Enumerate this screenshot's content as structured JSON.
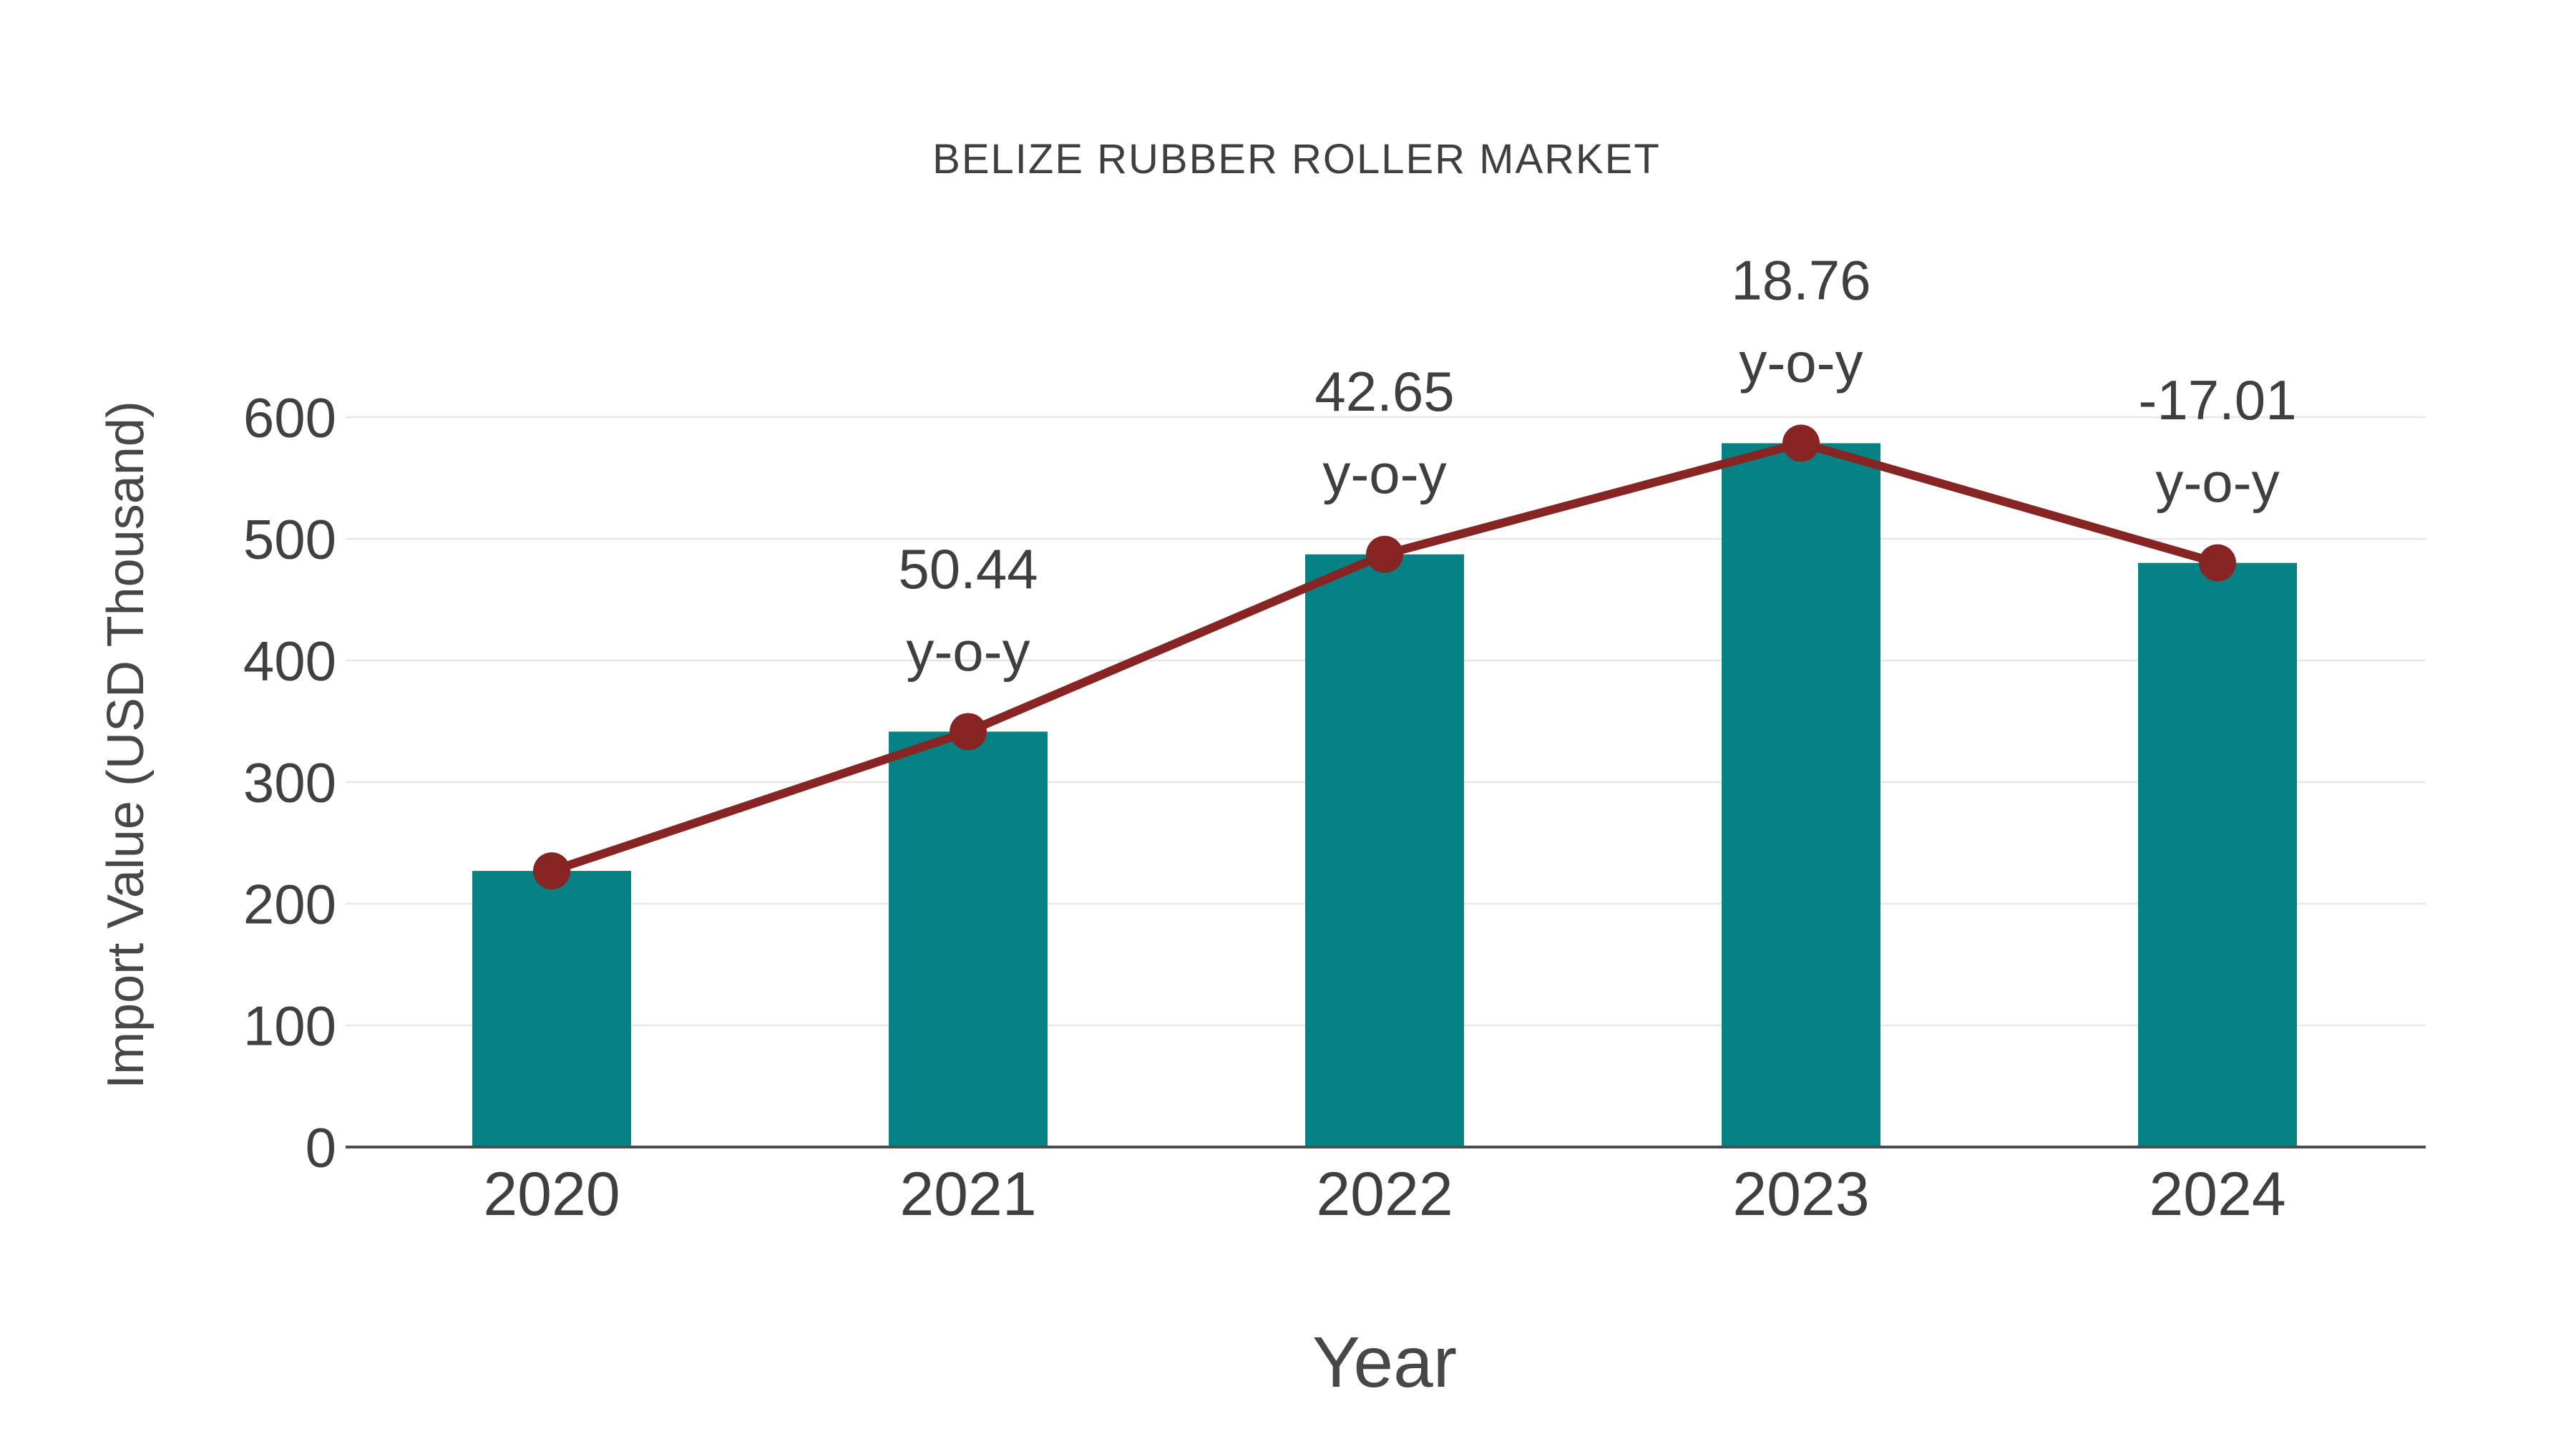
{
  "chart_data": {
    "type": "bar+line",
    "title": "BELIZE RUBBER ROLLER MARKET",
    "xlabel": "Year",
    "ylabel": "Import Value (USD Thousand)",
    "categories": [
      "2020",
      "2021",
      "2022",
      "2023",
      "2024"
    ],
    "series": [
      {
        "name": "import-value-bars",
        "type": "bar",
        "values": [
          227,
          341.5,
          487.2,
          578.6,
          480.2
        ]
      },
      {
        "name": "import-value-trend",
        "type": "line",
        "values": [
          227,
          341.5,
          487.2,
          578.6,
          480.2
        ]
      }
    ],
    "yoy_percent": [
      null,
      50.44,
      42.65,
      18.76,
      -17.01
    ],
    "annotations": [
      {
        "category": "2021",
        "line1": "50.44",
        "line2": "y-o-y"
      },
      {
        "category": "2022",
        "line1": "42.65",
        "line2": "y-o-y"
      },
      {
        "category": "2023",
        "line1": "18.76",
        "line2": "y-o-y"
      },
      {
        "category": "2024",
        "line1": "-17.01",
        "line2": "y-o-y"
      }
    ],
    "ylim": [
      0,
      600
    ],
    "yticks": [
      0,
      100,
      200,
      300,
      400,
      500,
      600
    ],
    "grid": "horizontal",
    "legend": "none",
    "colors": {
      "bar": "#068285",
      "line": "#872424",
      "marker": "#872424",
      "text": "#3f3f3f",
      "grid": "#e7e7e7",
      "axis": "#4d4d4d",
      "background": "#ffffff"
    }
  }
}
